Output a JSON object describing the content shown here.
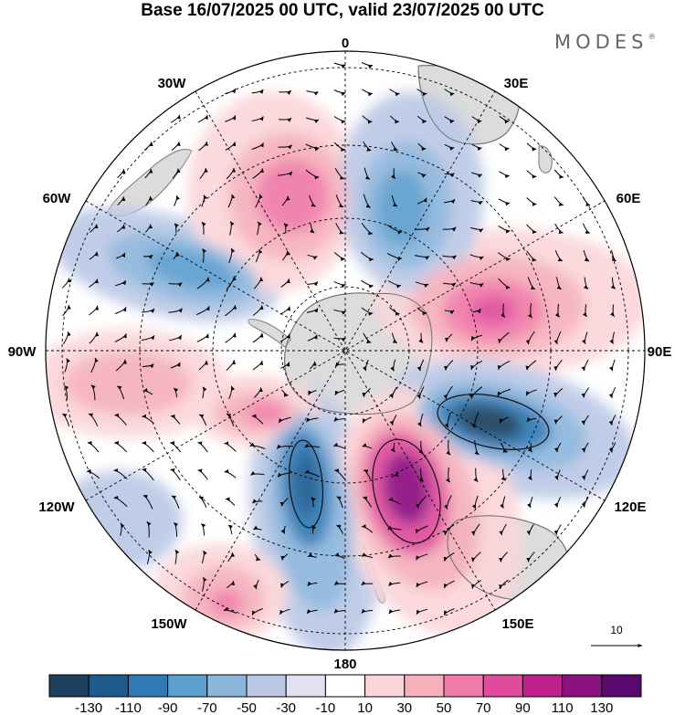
{
  "title": "Base 16/07/2025 00 UTC, valid 23/07/2025 00 UTC",
  "logo": "MODES",
  "logo_mark": "®",
  "map": {
    "projection": "south polar stereographic",
    "longitude_labels": [
      "0",
      "30E",
      "60E",
      "90E",
      "120E",
      "150E",
      "180",
      "150W",
      "120W",
      "90W",
      "60W",
      "30W"
    ],
    "vector_reference": {
      "label": "10"
    }
  },
  "colorbar": {
    "tick_labels": [
      "-130",
      "-110",
      "-90",
      "-70",
      "-50",
      "-30",
      "-10",
      "10",
      "30",
      "50",
      "70",
      "90",
      "110",
      "130"
    ],
    "colors": [
      "#1c3f5e",
      "#1d5a8e",
      "#2f7ab5",
      "#5b9fcd",
      "#8db6dd",
      "#bcc9e6",
      "#e1e1f1",
      "#ffffff",
      "#fbd6d9",
      "#f6b0bc",
      "#f07aa8",
      "#e04b9c",
      "#c01f8e",
      "#8c1182",
      "#5a0a6e"
    ]
  },
  "colors": {
    "land": "#dcdcdc",
    "coast": "#7a7a7a",
    "grid": "#000000"
  }
}
